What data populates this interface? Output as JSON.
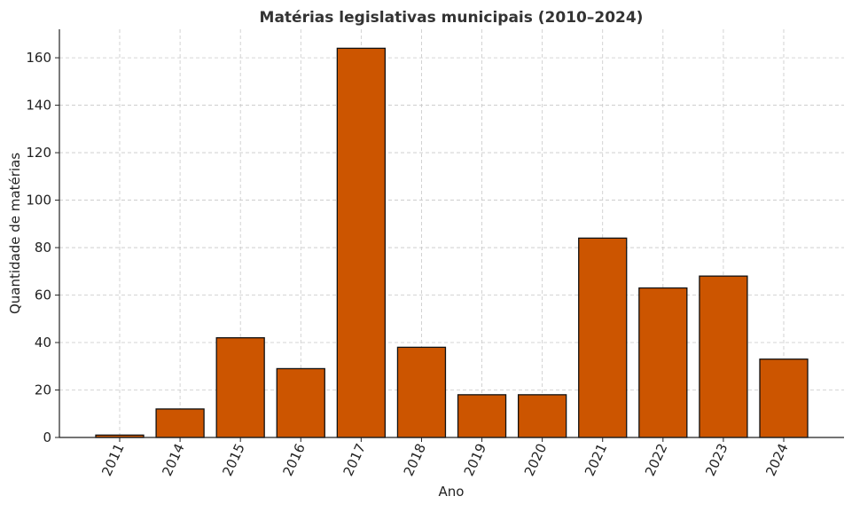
{
  "chart_data": {
    "type": "bar",
    "title": "Matérias legislativas municipais (2010–2024)",
    "xlabel": "Ano",
    "ylabel": "Quantidade de matérias",
    "categories": [
      "2011",
      "2014",
      "2015",
      "2016",
      "2017",
      "2018",
      "2019",
      "2020",
      "2021",
      "2022",
      "2023",
      "2024"
    ],
    "values": [
      1,
      12,
      42,
      29,
      164,
      38,
      18,
      18,
      84,
      63,
      68,
      33
    ],
    "ylim": [
      0,
      172
    ],
    "yticks": [
      0,
      20,
      40,
      60,
      80,
      100,
      120,
      140,
      160
    ],
    "bar_color": "#cc5500",
    "edge_color": "#111111",
    "grid": true,
    "legend": "none"
  }
}
